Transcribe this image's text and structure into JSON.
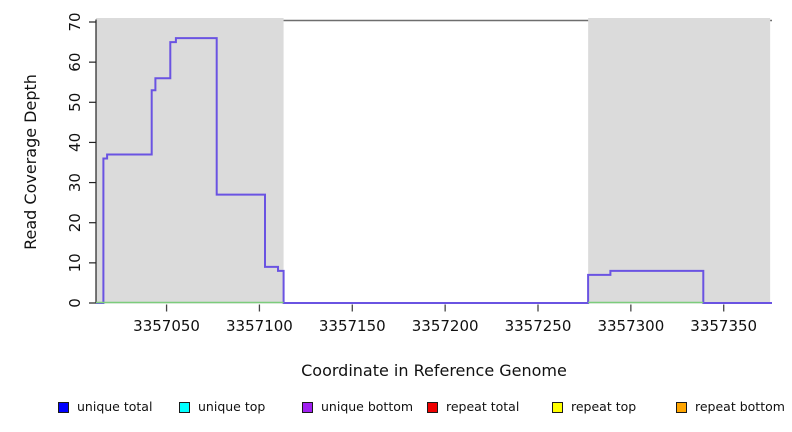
{
  "chart_data": {
    "type": "line",
    "subtype": "step-coverage",
    "title": "",
    "xlabel": "Coordinate in Reference Genome",
    "ylabel": "Read Coverage Depth",
    "xlim": [
      3357012,
      3357376
    ],
    "ylim": [
      0,
      70
    ],
    "x_ticks": [
      3357050,
      3357100,
      3357150,
      3357200,
      3357250,
      3357300,
      3357350
    ],
    "y_ticks": [
      0,
      10,
      20,
      30,
      40,
      50,
      60,
      70
    ],
    "grid": false,
    "legend_position": "bottom",
    "plot_border_color": "#6e6e6e",
    "shaded_regions": [
      {
        "name": "repeat-region-left",
        "start": 3357012,
        "end": 3357113,
        "color": "#dbdbdb"
      },
      {
        "name": "repeat-region-right",
        "start": 3357277,
        "end": 3357375,
        "color": "#dbdbdb"
      }
    ],
    "series": [
      {
        "name": "unique coverage step line",
        "color": "#6a53e2",
        "steps": [
          {
            "start": 3357012,
            "end": 3357016,
            "depth": 0
          },
          {
            "start": 3357016,
            "end": 3357018,
            "depth": 36
          },
          {
            "start": 3357018,
            "end": 3357042,
            "depth": 37
          },
          {
            "start": 3357042,
            "end": 3357044,
            "depth": 53
          },
          {
            "start": 3357044,
            "end": 3357052,
            "depth": 56
          },
          {
            "start": 3357052,
            "end": 3357055,
            "depth": 65
          },
          {
            "start": 3357055,
            "end": 3357077,
            "depth": 66
          },
          {
            "start": 3357077,
            "end": 3357103,
            "depth": 27
          },
          {
            "start": 3357103,
            "end": 3357110,
            "depth": 9
          },
          {
            "start": 3357110,
            "end": 3357113,
            "depth": 8
          },
          {
            "start": 3357113,
            "end": 3357277,
            "depth": 0
          },
          {
            "start": 3357277,
            "end": 3357289,
            "depth": 7
          },
          {
            "start": 3357289,
            "end": 3357339,
            "depth": 8
          },
          {
            "start": 3357339,
            "end": 3357376,
            "depth": 0
          }
        ]
      },
      {
        "name": "zero baseline inside repeat regions",
        "color": "#7ccc7c",
        "segments": [
          {
            "start": 3357012,
            "end": 3357113,
            "depth": 0
          },
          {
            "start": 3357277,
            "end": 3357339,
            "depth": 0
          }
        ]
      }
    ]
  },
  "legend": {
    "items": [
      {
        "label": "unique total",
        "color": "#0000ff"
      },
      {
        "label": "unique top",
        "color": "#00ffff"
      },
      {
        "label": "unique bottom",
        "color": "#a020f0"
      },
      {
        "label": "repeat total",
        "color": "#ee0000"
      },
      {
        "label": "repeat top",
        "color": "#ffff00"
      },
      {
        "label": "repeat bottom",
        "color": "#ffa500"
      }
    ]
  }
}
